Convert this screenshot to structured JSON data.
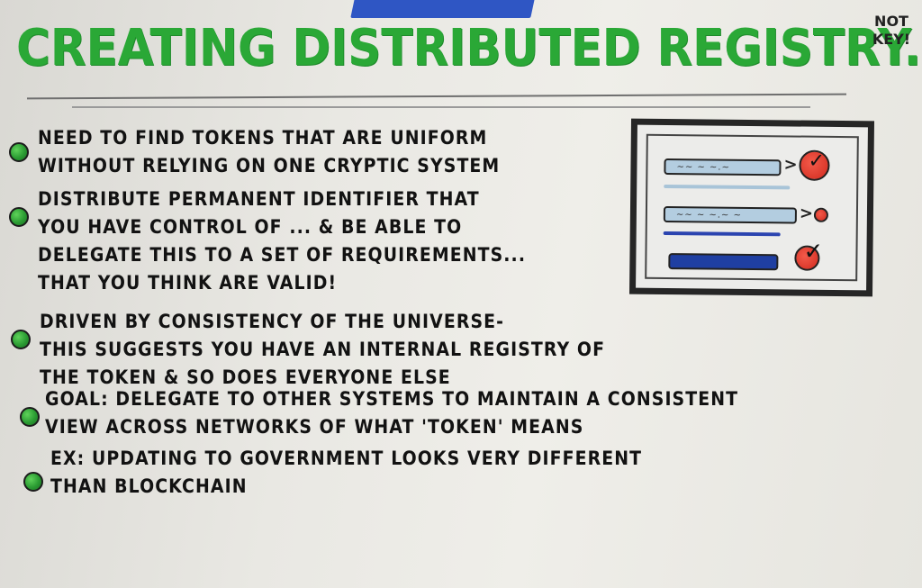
{
  "title": "CREATING DISTRIBUTED REGISTRY...",
  "side_note": "NOT KEY!",
  "bullets": [
    {
      "lines": [
        "NEED TO FIND TOKENS THAT ARE UNIFORM",
        "WITHOUT RELYING ON ONE CRYPTIC SYSTEM"
      ]
    },
    {
      "lines": [
        "DISTRIBUTE PERMANENT IDENTIFIER THAT",
        "YOU HAVE CONTROL OF ... & BE ABLE TO",
        "DELEGATE THIS TO A SET OF REQUIREMENTS...",
        "THAT YOU THINK ARE VALID!"
      ]
    },
    {
      "lines": [
        "DRIVEN BY CONSISTENCY OF THE UNIVERSE-",
        "THIS SUGGESTS YOU HAVE AN INTERNAL REGISTRY OF",
        "THE TOKEN & SO DOES EVERYONE ELSE"
      ]
    },
    {
      "lines": [
        "GOAL: DELEGATE TO OTHER SYSTEMS TO MAINTAIN A CONSISTENT",
        "VIEW ACROSS NETWORKS OF WHAT 'TOKEN' MEANS"
      ]
    },
    {
      "lines": [
        "EX: UPDATING TO GOVERNMENT LOOKS VERY DIFFERENT",
        "THAN BLOCKCHAIN"
      ]
    }
  ],
  "colors": {
    "title_green": "#2aa836",
    "bullet_green": "#2a9b32",
    "ink": "#121212",
    "tape_blue": "#2f56c4",
    "accent_red": "#d12a1e"
  },
  "icons": [
    "green-bullet-dot",
    "checkmark-icon",
    "arrow-right-icon"
  ]
}
